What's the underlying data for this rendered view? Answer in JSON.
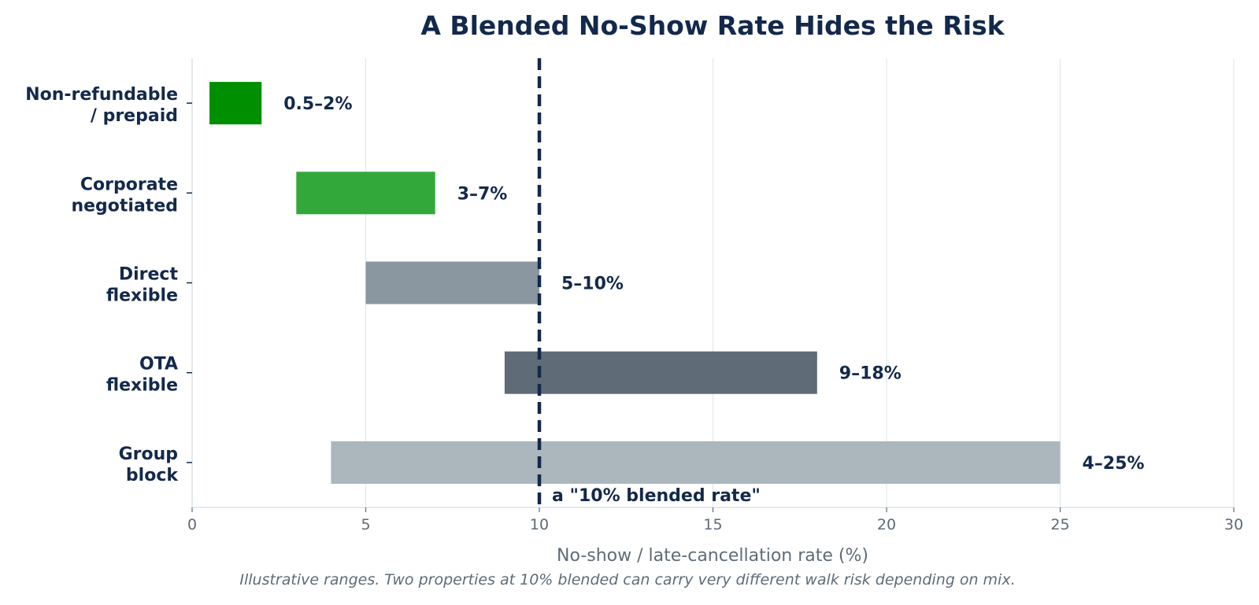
{
  "chart_data": {
    "type": "bar",
    "orientation": "horizontal",
    "title": "A Blended No-Show Rate Hides the Risk",
    "xlabel": "No-show / late-cancellation rate (%)",
    "ylabel": "",
    "xlim": [
      0,
      30
    ],
    "xticks": [
      0,
      5,
      10,
      15,
      20,
      25,
      30
    ],
    "grid": "vertical",
    "categories": [
      {
        "lines": [
          "Non-refundable",
          "/ prepaid"
        ],
        "low": 0.5,
        "high": 2,
        "label": "0.5–2%",
        "color": "#008f00"
      },
      {
        "lines": [
          "Corporate",
          "negotiated"
        ],
        "low": 3,
        "high": 7,
        "label": "3–7%",
        "color": "#33a83a"
      },
      {
        "lines": [
          "Direct",
          "flexible"
        ],
        "low": 5,
        "high": 10,
        "label": "5–10%",
        "color": "#8a97a1"
      },
      {
        "lines": [
          "OTA",
          "flexible"
        ],
        "low": 9,
        "high": 18,
        "label": "9–18%",
        "color": "#5f6b76"
      },
      {
        "lines": [
          "Group",
          "block"
        ],
        "low": 4,
        "high": 25,
        "label": "4–25%",
        "color": "#abb6bd"
      }
    ],
    "reference_line": {
      "x": 10,
      "label": "a \"10% blended rate\"",
      "color": "#13294b",
      "style": "dashed"
    },
    "footnote": "Illustrative ranges. Two properties at 10% blended can carry very different walk risk depending on mix."
  }
}
